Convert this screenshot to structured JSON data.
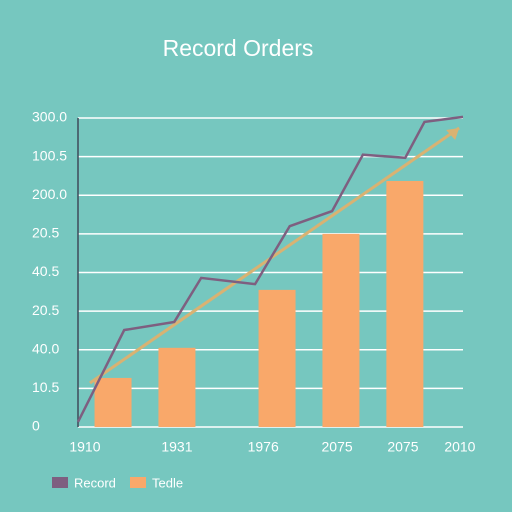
{
  "chart_data": {
    "type": "bar",
    "title": "Record Orders",
    "xlim": [
      0,
      10
    ],
    "ylim": [
      0,
      8
    ],
    "yticks": [
      0,
      1,
      2,
      3,
      4,
      5,
      6,
      7,
      8
    ],
    "ytick_labels": [
      "0",
      "10.5",
      "40.0",
      "20.5",
      "40.5",
      "20.5",
      "200.0",
      "100.5",
      "300.0"
    ],
    "xticks": [
      0.18,
      2.57,
      4.81,
      6.73,
      8.44,
      9.92
    ],
    "xtick_labels": [
      "1910",
      "1931",
      "1976",
      "2075",
      "2075",
      "2010"
    ],
    "grid": true,
    "series": [
      {
        "name": "Record",
        "type": "line",
        "color": "#7e5f80",
        "x": [
          0,
          1.2,
          2.5,
          3.2,
          4.6,
          5.5,
          6.6,
          7.4,
          8.5,
          9.0,
          10
        ],
        "values": [
          0.13,
          2.51,
          2.72,
          3.86,
          3.7,
          5.2,
          5.59,
          7.05,
          6.97,
          7.9,
          8.03
        ]
      },
      {
        "name": "Tedle",
        "type": "bar",
        "color": "#f9a86a",
        "x": [
          0.91,
          2.57,
          5.17,
          6.83,
          8.49
        ],
        "values": [
          1.27,
          2.05,
          3.55,
          5.0,
          6.37
        ]
      }
    ],
    "trend": {
      "color": "#d9b272",
      "x": [
        0.31,
        9.9
      ],
      "values": [
        1.14,
        7.74
      ]
    }
  }
}
